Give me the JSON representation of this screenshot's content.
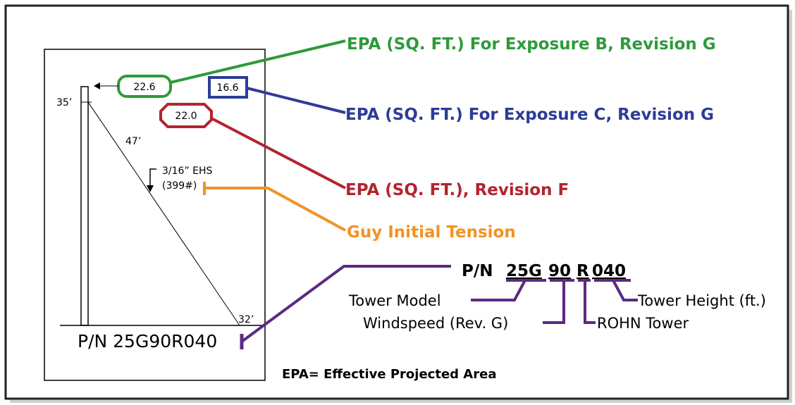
{
  "callouts": {
    "exposure_b": "EPA (SQ. FT.) For Exposure B, Revision G",
    "exposure_c": "EPA (SQ. FT.) For Exposure C, Revision G",
    "revision_f": "EPA (SQ. FT.), Revision F",
    "guy_tension": "Guy Initial Tension"
  },
  "tower": {
    "height": "35’",
    "guy_length": "47’",
    "anchor_distance": "32’",
    "epa_b": "22.6",
    "epa_c": "16.6",
    "epa_f": "22.0",
    "guy_size": "3/16” EHS",
    "guy_tension": "(399#)",
    "part_number": "P/N 25G90R040"
  },
  "part_number": {
    "prefix": "P/N",
    "model": "25G",
    "windspeed": "90",
    "maker": "R",
    "height": "040",
    "parts": {
      "model": "Tower Model",
      "windspeed": "Windspeed (Rev. G)",
      "maker": "ROHN Tower",
      "height": "Tower Height (ft.)"
    }
  },
  "footnote": "EPA= Effective Projected Area"
}
